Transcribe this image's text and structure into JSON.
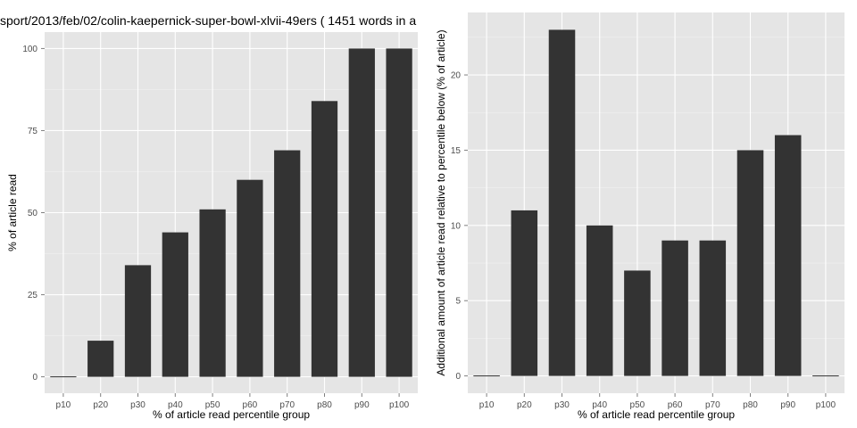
{
  "title": "sport/2013/feb/02/colin-kaepernick-super-bowl-xlvii-49ers ( 1451 words in a",
  "colors": {
    "panel_background": "#e5e5e5",
    "gridline": "#ffffff",
    "bar_fill": "#333333",
    "tick_text": "#4d4d4d"
  },
  "chart_data": [
    {
      "type": "bar",
      "categories": [
        "p10",
        "p20",
        "p30",
        "p40",
        "p50",
        "p60",
        "p70",
        "p80",
        "p90",
        "p100"
      ],
      "values": [
        0,
        11,
        34,
        44,
        51,
        60,
        69,
        84,
        100,
        100
      ],
      "xlabel": "% of article read percentile group",
      "ylabel": "% of article read",
      "ylim": [
        0,
        100
      ],
      "yticks": [
        0,
        25,
        50,
        75,
        100
      ],
      "grid": true,
      "legend": "none"
    },
    {
      "type": "bar",
      "categories": [
        "p10",
        "p20",
        "p30",
        "p40",
        "p50",
        "p60",
        "p70",
        "p80",
        "p90",
        "p100"
      ],
      "values": [
        0,
        11,
        23,
        10,
        7,
        9,
        9,
        15,
        16,
        0
      ],
      "xlabel": "% of article read percentile group",
      "ylabel": "Additional amount of article read relative to percentile below (% of article)",
      "ylim": [
        0,
        23
      ],
      "yticks": [
        0,
        5,
        10,
        15,
        20
      ],
      "grid": true,
      "legend": "none"
    }
  ]
}
